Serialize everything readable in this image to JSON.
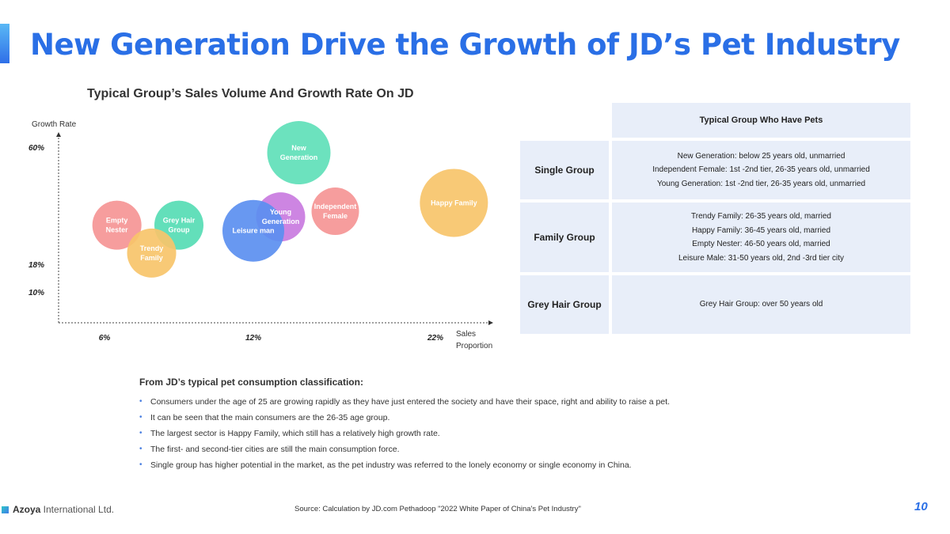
{
  "title": "New Generation Drive the Growth of JD’s Pet Industry",
  "chart_data": {
    "type": "bubble",
    "title": "Typical Group’s Sales Volume And Growth Rate On JD",
    "ylabel": "Growth Rate",
    "xlabel": "Sales Proportion",
    "x_ticks": [
      {
        "value": 6,
        "label": "6%"
      },
      {
        "value": 12,
        "label": "12%"
      },
      {
        "value": 22,
        "label": "22%"
      }
    ],
    "y_ticks": [
      {
        "value": 10,
        "label": "10%"
      },
      {
        "value": 18,
        "label": "18%"
      },
      {
        "value": 60,
        "label": "60%"
      }
    ],
    "series": [
      {
        "name": "New Generation",
        "x": 14.5,
        "y": 58,
        "size": 40,
        "color": "#5fe0b8"
      },
      {
        "name": "Happy Family",
        "x": 23,
        "y": 40,
        "size": 43,
        "color": "#f7c46a"
      },
      {
        "name": "Independent Female",
        "x": 16.5,
        "y": 37,
        "size": 30,
        "color": "#f59595"
      },
      {
        "name": "Young Generation",
        "x": 13.5,
        "y": 35,
        "size": 31,
        "color": "#c97be0"
      },
      {
        "name": "Leisure man",
        "x": 12,
        "y": 30,
        "size": 39,
        "color": "#5b8ff0"
      },
      {
        "name": "Grey Hair Group",
        "x": 9,
        "y": 32,
        "size": 31,
        "color": "#56dcb4"
      },
      {
        "name": "Empty Nester",
        "x": 6.5,
        "y": 32,
        "size": 31,
        "color": "#f59595"
      },
      {
        "name": "Trendy Family",
        "x": 7.9,
        "y": 22,
        "size": 31,
        "color": "#f7c46a"
      }
    ]
  },
  "table": {
    "header": "Typical Group Who Have Pets",
    "rows": [
      {
        "category": "Single Group",
        "lines": [
          "New Generation: below 25 years old, unmarried",
          "Independent Female: 1st -2nd tier, 26-35 years old, unmarried",
          "Young Generation: 1st -2nd tier, 26-35 years old, unmarried"
        ]
      },
      {
        "category": "Family Group",
        "lines": [
          "Trendy Family: 26-35 years old, married",
          "Happy Family: 36-45 years old, married",
          "Empty Nester: 46-50 years old, married",
          "Leisure Male: 31-50 years old, 2nd -3rd tier city"
        ]
      },
      {
        "category": "Grey Hair Group",
        "lines": [
          "Grey Hair Group: over 50 years old"
        ]
      }
    ]
  },
  "summary": {
    "heading": "From JD’s typical pet consumption classification:",
    "bullets": [
      "Consumers under the age of 25 are growing rapidly as they have just entered the society and have their space, right and ability to raise a pet.",
      "It can be seen that the main consumers are the 26-35 age group.",
      "The largest sector is Happy Family, which still has a relatively high growth rate.",
      "The first- and second-tier cities are still the main consumption force.",
      "Single group has higher potential in the market, as the pet industry was referred to the lonely economy or single economy in China."
    ]
  },
  "footer": {
    "company_bold": "Azoya",
    "company_rest": " International Ltd.",
    "source": "Source: Calculation by JD.com Pethadoop \"2022 White Paper of China's Pet Industry\"",
    "page_number": "10"
  },
  "colors": {
    "accent": "#2a6fe6",
    "table_bg": "#e8eef9"
  }
}
